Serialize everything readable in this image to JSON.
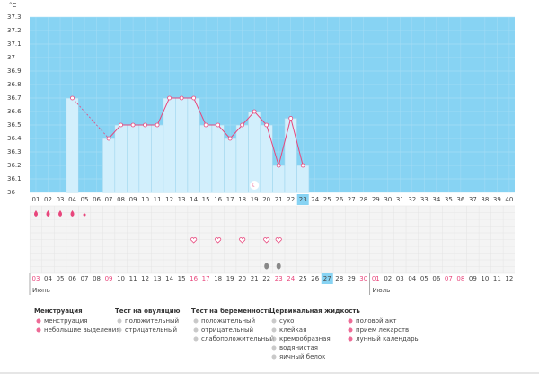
{
  "chart_data": {
    "type": "bar",
    "unit": "°C",
    "categories": [
      "01",
      "02",
      "03",
      "04",
      "05",
      "06",
      "07",
      "08",
      "09",
      "10",
      "11",
      "12",
      "13",
      "14",
      "15",
      "16",
      "17",
      "18",
      "19",
      "20",
      "21",
      "22",
      "23",
      "24",
      "25",
      "26",
      "27",
      "28",
      "29",
      "30",
      "31",
      "32",
      "33",
      "34",
      "35",
      "36",
      "37",
      "38",
      "39",
      "40"
    ],
    "values": [
      null,
      null,
      null,
      36.7,
      null,
      null,
      36.4,
      36.5,
      36.5,
      36.5,
      36.5,
      36.7,
      36.7,
      36.7,
      36.5,
      36.5,
      36.4,
      36.5,
      36.6,
      36.5,
      36.2,
      36.55,
      36.2,
      null,
      null,
      null,
      null,
      null,
      null,
      null,
      null,
      null,
      null,
      null,
      null,
      null,
      null,
      null,
      null,
      null
    ],
    "color": "#e8467c",
    "ylim": [
      36,
      37.3
    ],
    "yticks": [
      36,
      36.1,
      36.2,
      36.3,
      36.4,
      36.5,
      36.6,
      36.7,
      36.8,
      36.9,
      37,
      37.1,
      37.2,
      37.3
    ],
    "grid": true
  },
  "calendar": {
    "dates": [
      "03",
      "04",
      "05",
      "06",
      "07",
      "08",
      "09",
      "10",
      "11",
      "12",
      "13",
      "14",
      "15",
      "16",
      "17",
      "18",
      "19",
      "20",
      "21",
      "22",
      "23",
      "24",
      "25",
      "26",
      "27",
      "28",
      "29",
      "30",
      "01",
      "02",
      "03",
      "04",
      "05",
      "06",
      "07",
      "08",
      "09",
      "10",
      "11",
      "12"
    ],
    "months": [
      "Июнь",
      "Июль"
    ]
  },
  "legend": {
    "groups": [
      {
        "title": "Менструация",
        "items": [
          "менструация",
          "небольшие выделения"
        ]
      },
      {
        "title": "Тест на овуляцию",
        "items": [
          "положительный",
          "отрицательный"
        ]
      },
      {
        "title": "Тест на беременность",
        "items": [
          "положительный",
          "отрицательный",
          "слабоположительный"
        ]
      },
      {
        "title": "Цервикальная жидкость",
        "items": [
          "сухо",
          "клейкая",
          "кремообразная",
          "водянистая",
          "яичный белок"
        ]
      },
      {
        "items": [
          "половой акт",
          "прием лекарств",
          "лунный календарь"
        ]
      }
    ]
  }
}
